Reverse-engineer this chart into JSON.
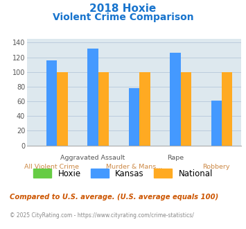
{
  "title_line1": "2018 Hoxie",
  "title_line2": "Violent Crime Comparison",
  "title_color": "#1874cd",
  "series": {
    "Hoxie": {
      "color": "#66cc44",
      "values": [
        0,
        0,
        0,
        0,
        0
      ]
    },
    "Kansas": {
      "color": "#4499ff",
      "values": [
        116,
        132,
        78,
        126,
        61
      ]
    },
    "National": {
      "color": "#ffaa22",
      "values": [
        100,
        100,
        100,
        100,
        100
      ]
    }
  },
  "top_xlabels": [
    "",
    "Aggravated Assault",
    "",
    "Rape",
    ""
  ],
  "bottom_xlabels": [
    "All Violent Crime",
    "Murder & Mans...",
    "",
    "Robbery",
    ""
  ],
  "ylim": [
    0,
    145
  ],
  "yticks": [
    0,
    20,
    40,
    60,
    80,
    100,
    120,
    140
  ],
  "background_color": "#dde8ee",
  "grid_color": "#bbccdd",
  "footnote1": "Compared to U.S. average. (U.S. average equals 100)",
  "footnote2": "© 2025 CityRating.com - https://www.cityrating.com/crime-statistics/",
  "footnote1_color": "#cc5500",
  "footnote2_color": "#888888",
  "legend_labels": [
    "Hoxie",
    "Kansas",
    "National"
  ],
  "legend_colors": [
    "#66cc44",
    "#4499ff",
    "#ffaa22"
  ]
}
